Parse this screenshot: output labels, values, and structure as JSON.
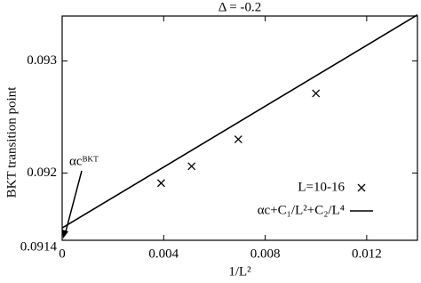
{
  "chart_data": {
    "type": "scatter",
    "title": "Δ = -0.2",
    "x_label": "1/L²",
    "y_label": "BKT transition point",
    "annotation": "αcᴮᴷᵀ",
    "xlim": [
      0,
      0.014
    ],
    "xticks": [
      0,
      0.004,
      0.008,
      0.012
    ],
    "ylim": [
      0.0914,
      0.0934
    ],
    "yticks": [
      0.0914,
      0.092,
      0.093
    ],
    "legend": "lower right",
    "series": [
      {
        "name": "L=10-16",
        "color": "#000000",
        "mode": "markers",
        "x": [
          0.0039,
          0.0051,
          0.00694,
          0.01
        ],
        "values": [
          0.09191,
          0.09206,
          0.0923,
          0.09271
        ]
      },
      {
        "name": "αc+C₁/L²+C₂/L⁴",
        "color": "#000000",
        "mode": "line",
        "x": [
          0,
          0.014
        ],
        "values": [
          0.09151,
          0.09341
        ]
      }
    ]
  }
}
